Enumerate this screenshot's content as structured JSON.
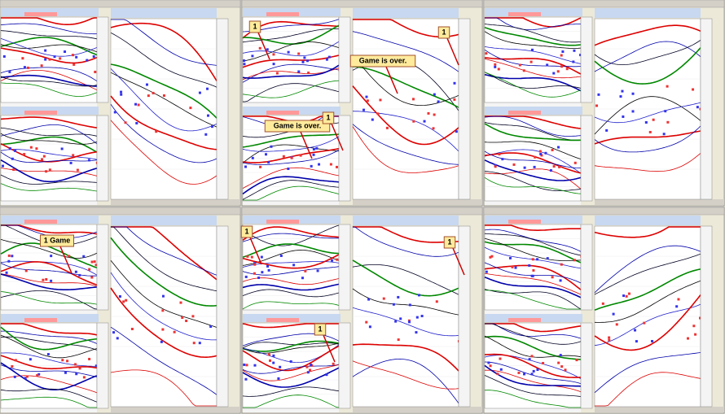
{
  "panels": [
    {
      "annotations": []
    },
    {
      "annotations": [
        {
          "text": "1"
        },
        {
          "text": "Game is over."
        },
        {
          "text": "1"
        },
        {
          "text": "Game is over."
        },
        {
          "text": "1"
        }
      ]
    },
    {
      "annotations": []
    },
    {
      "annotations": [
        {
          "text": "1 Game"
        }
      ]
    },
    {
      "annotations": [
        {
          "text": "1"
        },
        {
          "text": "1"
        },
        {
          "text": "1"
        }
      ]
    },
    {
      "annotations": []
    }
  ]
}
